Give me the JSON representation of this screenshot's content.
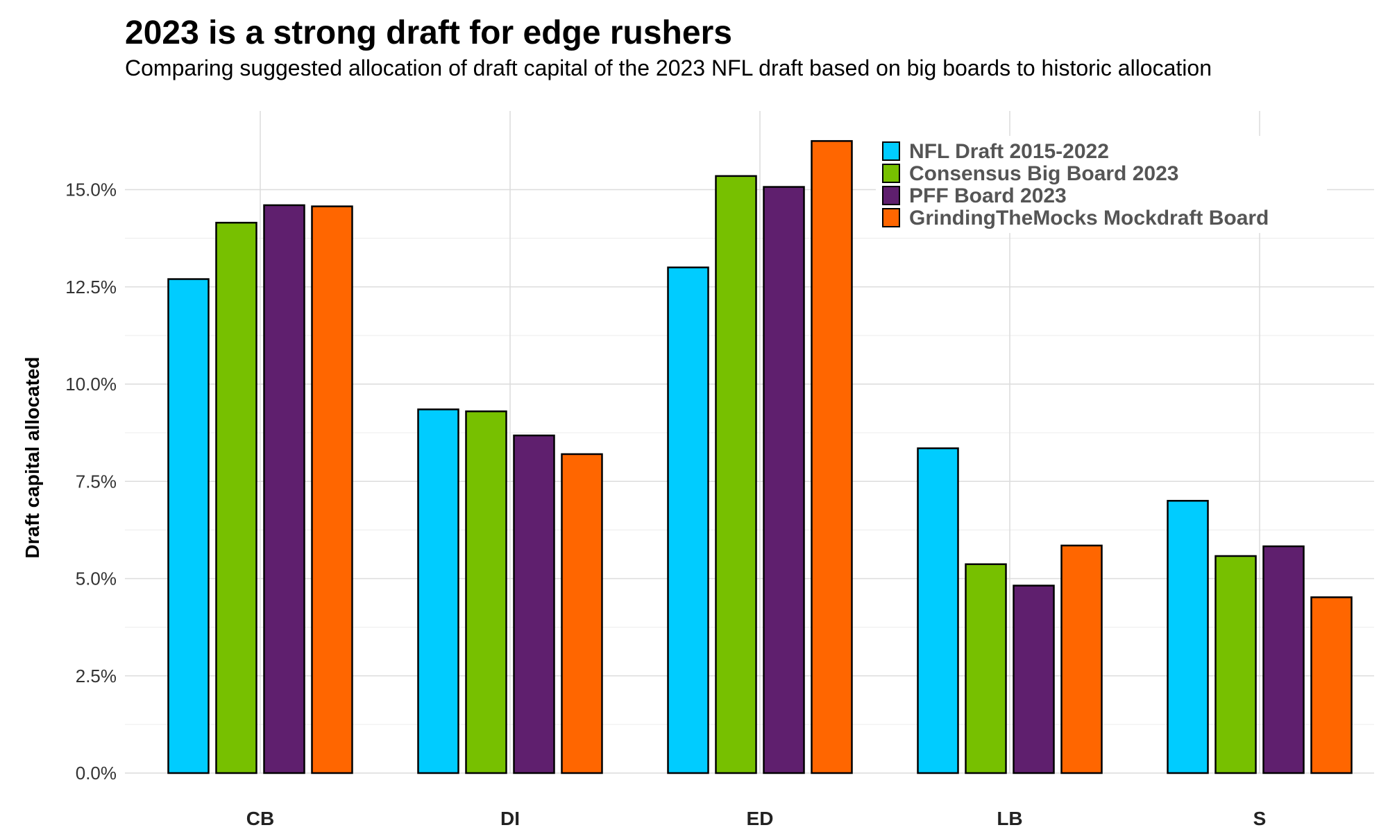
{
  "title": "2023 is a strong draft for edge rushers",
  "subtitle": "Comparing suggested allocation of draft capital of the 2023 NFL draft based on big boards to historic allocation",
  "chart_data": {
    "type": "bar",
    "title": "2023 is a strong draft for edge rushers",
    "subtitle": "Comparing suggested allocation of draft capital of the 2023 NFL draft based on big boards to historic allocation",
    "xlabel": "",
    "ylabel": "Draft capital allocated",
    "ylim": [
      0,
      16.5
    ],
    "yticks": [
      0.0,
      2.5,
      5.0,
      7.5,
      10.0,
      12.5,
      15.0
    ],
    "ytick_labels": [
      "0.0%",
      "2.5%",
      "5.0%",
      "7.5%",
      "10.0%",
      "12.5%",
      "15.0%"
    ],
    "grid": true,
    "legend_position": "top-right",
    "categories": [
      "CB",
      "DI",
      "ED",
      "LB",
      "S"
    ],
    "series": [
      {
        "name": "NFL Draft 2015-2022",
        "color": "#00CCFF",
        "values": [
          12.7,
          9.35,
          13.0,
          8.35,
          7.0
        ]
      },
      {
        "name": "Consensus Big Board 2023",
        "color": "#77C000",
        "values": [
          14.15,
          9.3,
          15.35,
          5.37,
          5.58
        ]
      },
      {
        "name": "PFF Board 2023",
        "color": "#5F1F6E",
        "values": [
          14.6,
          8.68,
          15.07,
          4.82,
          5.83
        ]
      },
      {
        "name": "GrindingTheMocks Mockdraft Board",
        "color": "#FF6600",
        "values": [
          14.57,
          8.2,
          16.25,
          5.85,
          4.52
        ]
      }
    ]
  }
}
